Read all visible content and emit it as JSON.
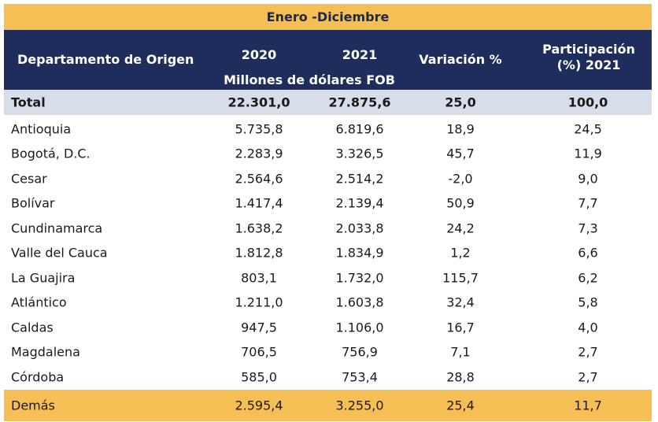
{
  "period": "Enero -Diciembre",
  "header": {
    "department": "Departamento de Origen",
    "y2020": "2020",
    "y2021": "2021",
    "unit": "Millones de dólares FOB",
    "variation": "Variación %",
    "participation": "Participación (%) 2021"
  },
  "total": {
    "name": "Total",
    "v2020": "22.301,0",
    "v2021": "27.875,6",
    "var": "25,0",
    "part": "100,0"
  },
  "rows": [
    {
      "name": "Antioquia",
      "v2020": "5.735,8",
      "v2021": "6.819,6",
      "var": "18,9",
      "part": "24,5"
    },
    {
      "name": "Bogotá, D.C.",
      "v2020": "2.283,9",
      "v2021": "3.326,5",
      "var": "45,7",
      "part": "11,9"
    },
    {
      "name": "Cesar",
      "v2020": "2.564,6",
      "v2021": "2.514,2",
      "var": "-2,0",
      "part": "9,0"
    },
    {
      "name": "Bolívar",
      "v2020": "1.417,4",
      "v2021": "2.139,4",
      "var": "50,9",
      "part": "7,7"
    },
    {
      "name": "Cundinamarca",
      "v2020": "1.638,2",
      "v2021": "2.033,8",
      "var": "24,2",
      "part": "7,3"
    },
    {
      "name": "Valle del Cauca",
      "v2020": "1.812,8",
      "v2021": "1.834,9",
      "var": "1,2",
      "part": "6,6"
    },
    {
      "name": "La Guajira",
      "v2020": "803,1",
      "v2021": "1.732,0",
      "var": "115,7",
      "part": "6,2"
    },
    {
      "name": "Atlántico",
      "v2020": "1.211,0",
      "v2021": "1.603,8",
      "var": "32,4",
      "part": "5,8"
    },
    {
      "name": "Caldas",
      "v2020": "947,5",
      "v2021": "1.106,0",
      "var": "16,7",
      "part": "4,0"
    },
    {
      "name": "Magdalena",
      "v2020": "706,5",
      "v2021": "756,9",
      "var": "7,1",
      "part": "2,7"
    },
    {
      "name": "Córdoba",
      "v2020": "585,0",
      "v2021": "753,4",
      "var": "28,8",
      "part": "2,7"
    }
  ],
  "others": {
    "name": "Demás",
    "v2020": "2.595,4",
    "v2021": "3.255,0",
    "var": "25,4",
    "part": "11,7"
  },
  "colors": {
    "accent": "#f5bf55",
    "header_bg": "#1f2d5c",
    "total_bg": "#d7dee9"
  }
}
